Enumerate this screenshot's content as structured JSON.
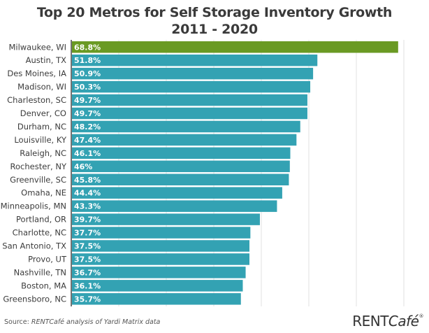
{
  "chart_data": {
    "type": "bar",
    "orientation": "horizontal",
    "title": "Top 20 Metros for Self Storage Inventory Growth",
    "subtitle": "2011 - 2020",
    "xlabel": "",
    "ylabel": "",
    "xlim": [
      0,
      70
    ],
    "grid": true,
    "grid_step": 10,
    "value_suffix": "%",
    "highlight_color": "#6a9a23",
    "bar_color": "#33a2b3",
    "categories": [
      "Milwaukee, WI",
      "Austin, TX",
      "Des Moines, IA",
      "Madison, WI",
      "Charleston, SC",
      "Denver, CO",
      "Durham, NC",
      "Louisville, KY",
      "Raleigh, NC",
      "Rochester, NY",
      "Greenville, SC",
      "Omaha, NE",
      "Minneapolis, MN",
      "Portland, OR",
      "Charlotte, NC",
      "San Antonio, TX",
      "Provo, UT",
      "Nashville, TN",
      "Boston, MA",
      "Greensboro, NC"
    ],
    "values": [
      68.8,
      51.8,
      50.9,
      50.3,
      49.7,
      49.7,
      48.2,
      47.4,
      46.1,
      46,
      45.8,
      44.4,
      43.3,
      39.7,
      37.7,
      37.5,
      37.5,
      36.7,
      36.1,
      35.7
    ],
    "value_labels": [
      "68.8%",
      "51.8%",
      "50.9%",
      "50.3%",
      "49.7%",
      "49.7%",
      "48.2%",
      "47.4%",
      "46.1%",
      "46%",
      "45.8%",
      "44.4%",
      "43.3%",
      "39.7%",
      "37.7%",
      "37.5%",
      "37.5%",
      "36.7%",
      "36.1%",
      "35.7%"
    ],
    "highlighted_index": 0
  },
  "header": {
    "title": "Top 20 Metros for Self Storage Inventory Growth",
    "subtitle": "2011 - 2020"
  },
  "footer": {
    "source_prefix": "Source: ",
    "source_text": "RENTCafé analysis of Yardi Matrix data",
    "brand_main": "RENT",
    "brand_italic": "Café",
    "brand_mark": "®"
  }
}
